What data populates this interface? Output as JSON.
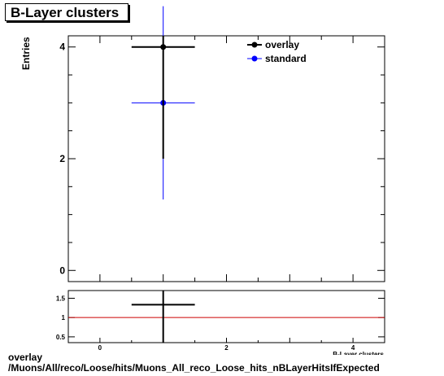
{
  "title": "B-Layer clusters",
  "footer": {
    "line1": "overlay",
    "line2": "/Muons/All/reco/Loose/hits/Muons_All_reco_Loose_hits_nBLayerHitsIfExpected"
  },
  "colors": {
    "overlay": "#000000",
    "standard": "#0000ff",
    "ratio_line": "#cc0000"
  },
  "chart_data": [
    {
      "type": "scatter",
      "title": "B-Layer clusters",
      "xlabel": "",
      "ylabel": "Entries",
      "xlim": [
        -0.5,
        4.5
      ],
      "ylim": [
        -0.2,
        4.2
      ],
      "y_ticks": [
        "0",
        "2",
        "4"
      ],
      "legend_position": "top-right",
      "series": [
        {
          "name": "overlay",
          "points": [
            {
              "x": 1,
              "y": 4,
              "xerr": 0.5,
              "yerr": 2
            }
          ]
        },
        {
          "name": "standard",
          "points": [
            {
              "x": 1,
              "y": 3,
              "xerr": 0.5,
              "yerr": 1.73
            }
          ]
        }
      ]
    },
    {
      "type": "scatter",
      "title": "",
      "xlabel": "B-Layer clusters",
      "ylabel": "",
      "xlim": [
        -0.5,
        4.5
      ],
      "ylim": [
        0.35,
        1.7
      ],
      "x_ticks": [
        "0",
        "2",
        "4"
      ],
      "y_ticks": [
        "0.5",
        "1",
        "1.5"
      ],
      "reference_line": 1,
      "series": [
        {
          "points": [
            {
              "x": 1,
              "y": 1.333,
              "xerr": 0.5,
              "yerr": 1.0
            }
          ]
        }
      ]
    }
  ]
}
